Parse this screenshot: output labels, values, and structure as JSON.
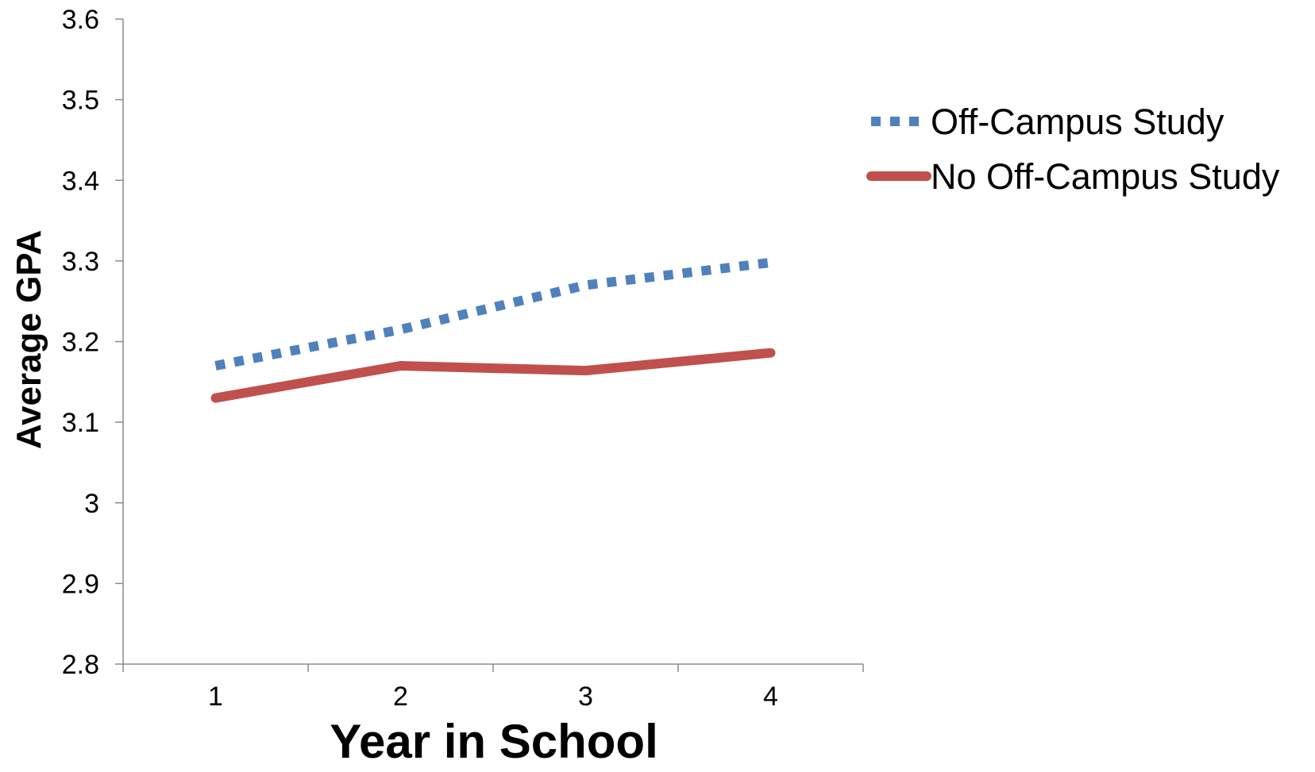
{
  "chart_data": {
    "type": "line",
    "title": "",
    "xlabel": "Year in School",
    "ylabel": "Average GPA",
    "categories": [
      "1",
      "2",
      "3",
      "4"
    ],
    "ylim": [
      2.8,
      3.6
    ],
    "yticks": [
      2.8,
      2.9,
      3,
      3.1,
      3.2,
      3.3,
      3.4,
      3.5,
      3.6
    ],
    "ytick_labels": [
      "2.8",
      "2.9",
      "3",
      "3.1",
      "3.2",
      "3.3",
      "3.4",
      "3.5",
      "3.6"
    ],
    "grid": false,
    "legend_position": "right",
    "series": [
      {
        "name": "Off-Campus Study",
        "values": [
          3.17,
          3.215,
          3.27,
          3.298
        ],
        "color": "#4f81bd",
        "line_style": "dotted"
      },
      {
        "name": "No Off-Campus Study",
        "values": [
          3.13,
          3.17,
          3.164,
          3.186
        ],
        "color": "#c0504d",
        "line_style": "solid"
      }
    ]
  }
}
